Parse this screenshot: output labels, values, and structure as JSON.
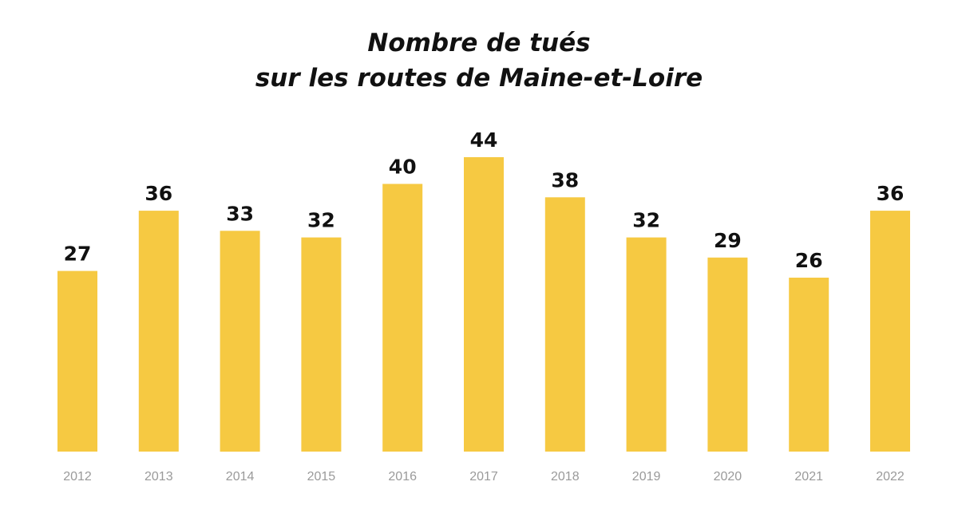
{
  "chart_data": {
    "type": "bar",
    "title_line1": "Nombre de tués",
    "title_line2": "sur les routes de Maine-et-Loire",
    "categories": [
      "2012",
      "2013",
      "2014",
      "2015",
      "2016",
      "2017",
      "2018",
      "2019",
      "2020",
      "2021",
      "2022"
    ],
    "values": [
      27,
      36,
      33,
      32,
      40,
      44,
      38,
      32,
      29,
      26,
      36
    ],
    "xlabel": "",
    "ylabel": "",
    "ylim": [
      0,
      44
    ],
    "grid": false,
    "legend": "none",
    "bar_color": "#F6C942",
    "label_color": "#111111",
    "tick_color": "#9A9A9A"
  }
}
